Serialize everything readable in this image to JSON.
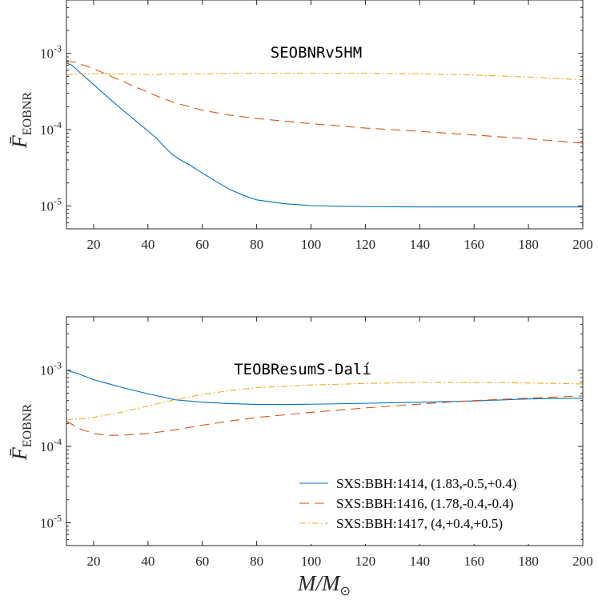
{
  "chart_data": [
    {
      "type": "line",
      "title": "SEOBNRv5HM",
      "ylabel_main": "F̄",
      "ylabel_sub": "EOBNR",
      "yscale": "log",
      "xlim": [
        10,
        200
      ],
      "ylim_exp": [
        -5.3,
        -2.3
      ],
      "yticks": [
        {
          "exp": -5,
          "label": "10",
          "sup": "-5"
        },
        {
          "exp": -4,
          "label": "10",
          "sup": "-4"
        },
        {
          "exp": -3,
          "label": "10",
          "sup": "-3"
        }
      ],
      "xticks": [
        20,
        40,
        60,
        80,
        100,
        120,
        140,
        160,
        180,
        200
      ],
      "xticks_labels": [
        "20",
        "40",
        "60",
        "80",
        "100",
        "120",
        "140",
        "160",
        "180",
        "200"
      ],
      "series": [
        {
          "name": "SXS:BBH:1414, (1.83,-0.5,+0.4)",
          "color": "#0072BD",
          "dash": "",
          "x": [
            10,
            12,
            15,
            20,
            25,
            30,
            35,
            40,
            43,
            46,
            49,
            52,
            55,
            60,
            65,
            70,
            75,
            80,
            90,
            100,
            110,
            120,
            140,
            160,
            180,
            200
          ],
          "y": [
            0.00075,
            0.0007,
            0.00056,
            0.00039,
            0.00027,
            0.00019,
            0.000135,
            9.62e-05,
            7.8e-05,
            6e-05,
            4.7e-05,
            4e-05,
            3.5e-05,
            2.7e-05,
            2.1e-05,
            1.65e-05,
            1.38e-05,
            1.2e-05,
            1.07e-05,
            1.01e-05,
            9.9e-06,
            9.8e-06,
            9.7e-06,
            9.7e-06,
            9.7e-06,
            9.7e-06
          ]
        },
        {
          "name": "SXS:BBH:1416, (1.78,-0.4,-0.4)",
          "color": "#D95319",
          "dash": "12,7",
          "x": [
            10,
            13,
            20,
            30,
            40,
            45,
            50,
            60,
            70,
            80,
            100,
            120,
            140,
            160,
            180,
            200
          ],
          "y": [
            0.00078,
            0.00077,
            0.00063,
            0.00044,
            0.00031,
            0.00026,
            0.000225,
            0.00018,
            0.000155,
            0.00014,
            0.00012,
            0.000105,
            9.5e-05,
            8.5e-05,
            7.6e-05,
            6.65e-05
          ]
        },
        {
          "name": "SXS:BBH:1417, (4,+0.4,+0.5)",
          "color": "#EDB120",
          "dash": "8,3,2,3",
          "x": [
            10,
            15,
            20,
            40,
            60,
            80,
            100,
            120,
            140,
            160,
            180,
            200
          ],
          "y": [
            0.00052,
            0.00054,
            0.00054,
            0.00053,
            0.00054,
            0.00055,
            0.00055,
            0.00055,
            0.00054,
            0.00052,
            0.00049,
            0.00045
          ]
        }
      ]
    },
    {
      "type": "line",
      "title": "TEOBResumS-Dalí",
      "ylabel_main": "F̄",
      "ylabel_sub": "EOBNR",
      "xlabel_main": "M/M",
      "xlabel_sub": "⊙",
      "yscale": "log",
      "xlim": [
        10,
        200
      ],
      "ylim_exp": [
        -5.3,
        -2.3
      ],
      "yticks": [
        {
          "exp": -5,
          "label": "10",
          "sup": "-5"
        },
        {
          "exp": -4,
          "label": "10",
          "sup": "-4"
        },
        {
          "exp": -3,
          "label": "10",
          "sup": "-3"
        }
      ],
      "xticks": [
        20,
        40,
        60,
        80,
        100,
        120,
        140,
        160,
        180,
        200
      ],
      "xticks_labels": [
        "20",
        "40",
        "60",
        "80",
        "100",
        "120",
        "140",
        "160",
        "180",
        "200"
      ],
      "legend": "bottom-right",
      "series": [
        {
          "name": "SXS:BBH:1414, (1.83,-0.5,+0.4)",
          "color": "#0072BD",
          "dash": "",
          "x": [
            10,
            15,
            20,
            30,
            40,
            50,
            60,
            70,
            80,
            90,
            100,
            120,
            140,
            160,
            180,
            200
          ],
          "y": [
            0.001,
            0.00088,
            0.00075,
            0.0006,
            0.00049,
            0.00041,
            0.00038,
            0.000365,
            0.000355,
            0.000355,
            0.000358,
            0.000368,
            0.00038,
            0.000395,
            0.00042,
            0.00043
          ]
        },
        {
          "name": "SXS:BBH:1416, (1.78,-0.4,-0.4)",
          "color": "#D95319",
          "dash": "12,7",
          "x": [
            10,
            15,
            20,
            25,
            30,
            40,
            50,
            60,
            70,
            80,
            100,
            120,
            140,
            160,
            180,
            200
          ],
          "y": [
            0.000215,
            0.00017,
            0.000148,
            0.00014,
            0.00014,
            0.000148,
            0.000165,
            0.00019,
            0.000215,
            0.00024,
            0.00028,
            0.00032,
            0.00036,
            0.0004,
            0.00043,
            0.00046
          ]
        },
        {
          "name": "SXS:BBH:1417, (4,+0.4,+0.5)",
          "color": "#EDB120",
          "dash": "8,3,2,3",
          "x": [
            10,
            15,
            20,
            30,
            40,
            50,
            60,
            70,
            80,
            100,
            120,
            140,
            160,
            180,
            200
          ],
          "y": [
            0.000225,
            0.00023,
            0.00024,
            0.00028,
            0.00034,
            0.00041,
            0.00048,
            0.00054,
            0.00059,
            0.00064,
            0.00067,
            0.00069,
            0.00069,
            0.00068,
            0.00066
          ]
        }
      ]
    }
  ]
}
